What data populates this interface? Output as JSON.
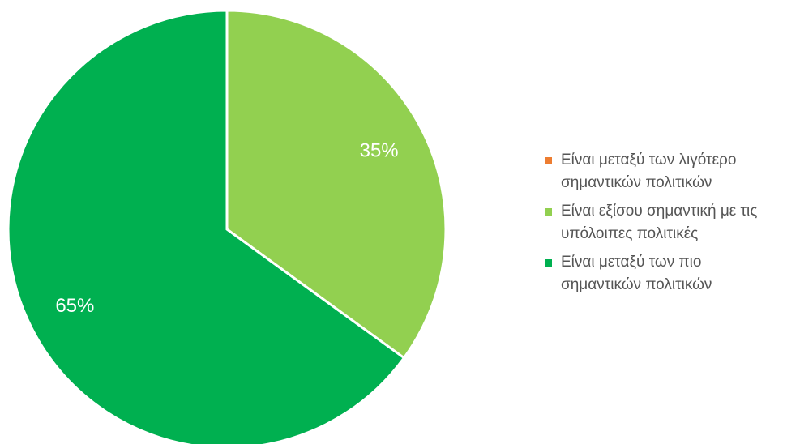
{
  "chart_data": {
    "type": "pie",
    "title": "",
    "legend_position": "right",
    "slices": [
      {
        "label": "Είναι μεταξύ των λιγότερο σημαντικών πολιτικών",
        "value": 0,
        "display": "",
        "color": "#ED7D31"
      },
      {
        "label": "Είναι εξίσου σημαντική με τις υπόλοιπες πολιτικές",
        "value": 35,
        "display": "35%",
        "color": "#92D050"
      },
      {
        "label": "Είναι μεταξύ των πιο σημαντικών πολιτικών",
        "value": 65,
        "display": "65%",
        "color": "#00B050"
      }
    ]
  },
  "legend": {
    "items": [
      {
        "line1": "Είναι μεταξύ των λιγότερο",
        "line2": "σημαντικών πολιτικών",
        "color": "#ED7D31"
      },
      {
        "line1": "Είναι εξίσου σημαντική με τις",
        "line2": "υπόλοιπες πολιτικές",
        "color": "#92D050"
      },
      {
        "line1": "Είναι μεταξύ των πιο",
        "line2": "σημαντικών πολιτικών",
        "color": "#00B050"
      }
    ]
  }
}
